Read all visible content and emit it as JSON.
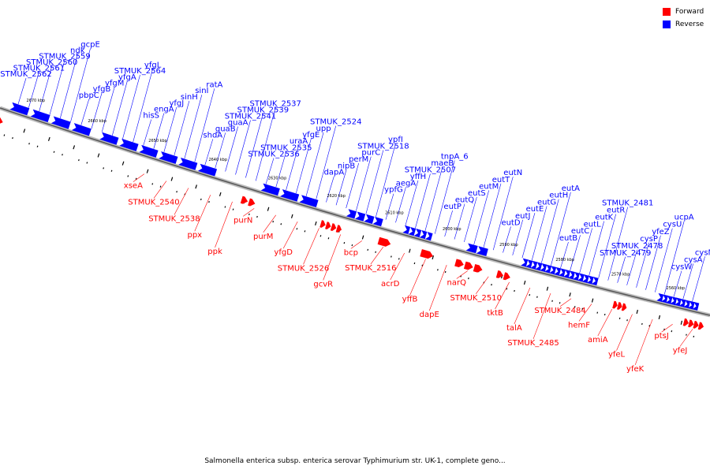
{
  "colors": {
    "forward": "#ff0000",
    "reverse": "#0000ff",
    "backbone": "#808080"
  },
  "legend": {
    "forward": "Forward",
    "reverse": "Reverse"
  },
  "caption": "Salmonella enterica subsp. enterica serovar Typhimurium str. UK-1, complete geno...",
  "ticks": [
    "2670 kbp",
    "2660 kbp",
    "2650 kbp",
    "2640 kbp",
    "2630 kbp",
    "2620 kbp",
    "2610 kbp",
    "2600 kbp",
    "2590 kbp",
    "2580 kbp",
    "2570 kbp",
    "2560 kbp"
  ],
  "reverse_labels": [
    "STMUK_2562",
    "STMUK_2561",
    "STMUK_2560",
    "STMUK_2559",
    "ndk",
    "gcpE",
    "pbpC",
    "yfgB",
    "yfgM",
    "yfgA",
    "STMUK_2564",
    "yfgL",
    "hisS",
    "engA",
    "yfgJ",
    "sinH",
    "sinI",
    "ratA",
    "shdA",
    "guaB",
    "guaA",
    "STMUK_2541",
    "STMUK_2539",
    "STMUK_2537",
    "STMUK_2536",
    "STMUK_2535",
    "uraA",
    "yfgE",
    "upp",
    "STMUK_2524",
    "dapA",
    "nipB",
    "perM",
    "purC",
    "STMUK_2518",
    "ypfI",
    "ypfG",
    "aegA",
    "yffH",
    "STMUK_2507",
    "maeB",
    "tnpA_6",
    "eutP",
    "eutQ",
    "eutS",
    "eutM",
    "eutT",
    "eutN",
    "eutD",
    "eutJ",
    "eutE",
    "eutG",
    "eutH",
    "eutA",
    "eutB",
    "eutC",
    "eutL",
    "eutK",
    "eutR",
    "STMUK_2481",
    "STMUK_2479",
    "STMUK_2478",
    "cysP",
    "yfeZ",
    "cysU",
    "ucpA",
    "cysW",
    "cysA",
    "cysM"
  ],
  "forward_labels": [
    "xseA",
    "STMUK_2540",
    "STMUK_2538",
    "ppx",
    "ppk",
    "purN",
    "purM",
    "yfgD",
    "STMUK_2526",
    "gcvR",
    "bcp",
    "STMUK_2516",
    "acrD",
    "yffB",
    "dapE",
    "narQ",
    "STMUK_2510",
    "tktB",
    "talA",
    "STMUK_2485",
    "STMUK_2484",
    "hemF",
    "amiA",
    "yfeL",
    "yfeK",
    "ptsJ",
    "yfeJ"
  ]
}
